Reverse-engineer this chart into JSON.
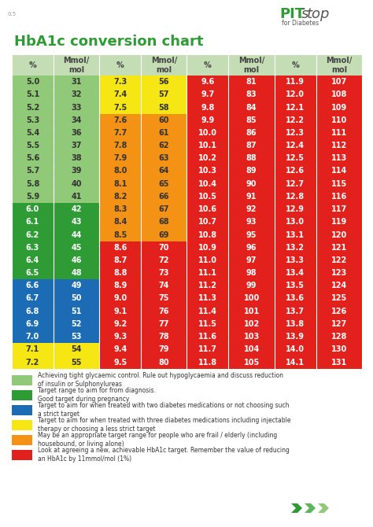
{
  "title": "HbA1c conversion chart",
  "header": [
    "%",
    "Mmol/\nmol",
    "%",
    "Mmol/\nmol",
    "%",
    "Mmol/\nmol",
    "%",
    "Mmol/\nmol"
  ],
  "rows": [
    [
      "5.0",
      "31",
      "7.3",
      "56",
      "9.6",
      "81",
      "11.9",
      "107"
    ],
    [
      "5.1",
      "32",
      "7.4",
      "57",
      "9.7",
      "83",
      "12.0",
      "108"
    ],
    [
      "5.2",
      "33",
      "7.5",
      "58",
      "9.8",
      "84",
      "12.1",
      "109"
    ],
    [
      "5.3",
      "34",
      "7.6",
      "60",
      "9.9",
      "85",
      "12.2",
      "110"
    ],
    [
      "5.4",
      "36",
      "7.7",
      "61",
      "10.0",
      "86",
      "12.3",
      "111"
    ],
    [
      "5.5",
      "37",
      "7.8",
      "62",
      "10.1",
      "87",
      "12.4",
      "112"
    ],
    [
      "5.6",
      "38",
      "7.9",
      "63",
      "10.2",
      "88",
      "12.5",
      "113"
    ],
    [
      "5.7",
      "39",
      "8.0",
      "64",
      "10.3",
      "89",
      "12.6",
      "114"
    ],
    [
      "5.8",
      "40",
      "8.1",
      "65",
      "10.4",
      "90",
      "12.7",
      "115"
    ],
    [
      "5.9",
      "41",
      "8.2",
      "66",
      "10.5",
      "91",
      "12.8",
      "116"
    ],
    [
      "6.0",
      "42",
      "8.3",
      "67",
      "10.6",
      "92",
      "12.9",
      "117"
    ],
    [
      "6.1",
      "43",
      "8.4",
      "68",
      "10.7",
      "93",
      "13.0",
      "119"
    ],
    [
      "6.2",
      "44",
      "8.5",
      "69",
      "10.8",
      "95",
      "13.1",
      "120"
    ],
    [
      "6.3",
      "45",
      "8.6",
      "70",
      "10.9",
      "96",
      "13.2",
      "121"
    ],
    [
      "6.4",
      "46",
      "8.7",
      "72",
      "11.0",
      "97",
      "13.3",
      "122"
    ],
    [
      "6.5",
      "48",
      "8.8",
      "73",
      "11.1",
      "98",
      "13.4",
      "123"
    ],
    [
      "6.6",
      "49",
      "8.9",
      "74",
      "11.2",
      "99",
      "13.5",
      "124"
    ],
    [
      "6.7",
      "50",
      "9.0",
      "75",
      "11.3",
      "100",
      "13.6",
      "125"
    ],
    [
      "6.8",
      "51",
      "9.1",
      "76",
      "11.4",
      "101",
      "13.7",
      "126"
    ],
    [
      "6.9",
      "52",
      "9.2",
      "77",
      "11.5",
      "102",
      "13.8",
      "127"
    ],
    [
      "7.0",
      "53",
      "9.3",
      "78",
      "11.6",
      "103",
      "13.9",
      "128"
    ],
    [
      "7.1",
      "54",
      "9.4",
      "79",
      "11.7",
      "104",
      "14.0",
      "130"
    ],
    [
      "7.2",
      "55",
      "9.5",
      "80",
      "11.8",
      "105",
      "14.1",
      "131"
    ]
  ],
  "row_colors": {
    "light_green": "#90c978",
    "green": "#2e9b35",
    "blue": "#1b6cb5",
    "yellow": "#f5e614",
    "orange": "#f39214",
    "red": "#e2201c",
    "header_bg": "#c5ddb5"
  },
  "col_colors_per_row": [
    [
      "light_green",
      "light_green",
      "yellow",
      "yellow",
      "red",
      "red",
      "red",
      "red"
    ],
    [
      "light_green",
      "light_green",
      "yellow",
      "yellow",
      "red",
      "red",
      "red",
      "red"
    ],
    [
      "light_green",
      "light_green",
      "yellow",
      "yellow",
      "red",
      "red",
      "red",
      "red"
    ],
    [
      "light_green",
      "light_green",
      "orange",
      "orange",
      "red",
      "red",
      "red",
      "red"
    ],
    [
      "light_green",
      "light_green",
      "orange",
      "orange",
      "red",
      "red",
      "red",
      "red"
    ],
    [
      "light_green",
      "light_green",
      "orange",
      "orange",
      "red",
      "red",
      "red",
      "red"
    ],
    [
      "light_green",
      "light_green",
      "orange",
      "orange",
      "red",
      "red",
      "red",
      "red"
    ],
    [
      "light_green",
      "light_green",
      "orange",
      "orange",
      "red",
      "red",
      "red",
      "red"
    ],
    [
      "light_green",
      "light_green",
      "orange",
      "orange",
      "red",
      "red",
      "red",
      "red"
    ],
    [
      "light_green",
      "light_green",
      "orange",
      "orange",
      "red",
      "red",
      "red",
      "red"
    ],
    [
      "green",
      "green",
      "orange",
      "orange",
      "red",
      "red",
      "red",
      "red"
    ],
    [
      "green",
      "green",
      "orange",
      "orange",
      "red",
      "red",
      "red",
      "red"
    ],
    [
      "green",
      "green",
      "orange",
      "orange",
      "red",
      "red",
      "red",
      "red"
    ],
    [
      "green",
      "green",
      "red",
      "red",
      "red",
      "red",
      "red",
      "red"
    ],
    [
      "green",
      "green",
      "red",
      "red",
      "red",
      "red",
      "red",
      "red"
    ],
    [
      "green",
      "green",
      "red",
      "red",
      "red",
      "red",
      "red",
      "red"
    ],
    [
      "blue",
      "blue",
      "red",
      "red",
      "red",
      "red",
      "red",
      "red"
    ],
    [
      "blue",
      "blue",
      "red",
      "red",
      "red",
      "red",
      "red",
      "red"
    ],
    [
      "blue",
      "blue",
      "red",
      "red",
      "red",
      "red",
      "red",
      "red"
    ],
    [
      "blue",
      "blue",
      "red",
      "red",
      "red",
      "red",
      "red",
      "red"
    ],
    [
      "blue",
      "blue",
      "red",
      "red",
      "red",
      "red",
      "red",
      "red"
    ],
    [
      "yellow",
      "yellow",
      "red",
      "red",
      "red",
      "red",
      "red",
      "red"
    ],
    [
      "yellow",
      "yellow",
      "red",
      "red",
      "red",
      "red",
      "red",
      "red"
    ]
  ],
  "legend": [
    {
      "color": "light_green",
      "text": "Achieving tight glycaemic control. Rule out hypoglycaemia and discuss reduction\nof insulin or Sulphonylureas"
    },
    {
      "color": "green",
      "text": "Target range to aim for from diagnosis.\nGood target during pregnancy"
    },
    {
      "color": "blue",
      "text": "Target to aim for when treated with two diabetes medications or not choosing such\na strict target"
    },
    {
      "color": "yellow",
      "text": "Target to aim for when treated with three diabetes medications including injectable\ntherapy or choosing a less strict target"
    },
    {
      "color": "orange",
      "text": "May be an appropriate target range for people who are frail / elderly (including\nhousebound, or living alone)"
    },
    {
      "color": "red",
      "text": "Look at agreeing a new, achievable HbA1c target. Remember the value of reducing\nan HbA1c by 11mmol/mol (1%)"
    }
  ],
  "pit_color": "#2e9b35",
  "stop_color": "#555555",
  "background": "#ffffff",
  "text_color": "#444444",
  "title_color": "#2e9b35",
  "chevron_colors": [
    "#2e9b35",
    "#5ab85a",
    "#90c978"
  ]
}
